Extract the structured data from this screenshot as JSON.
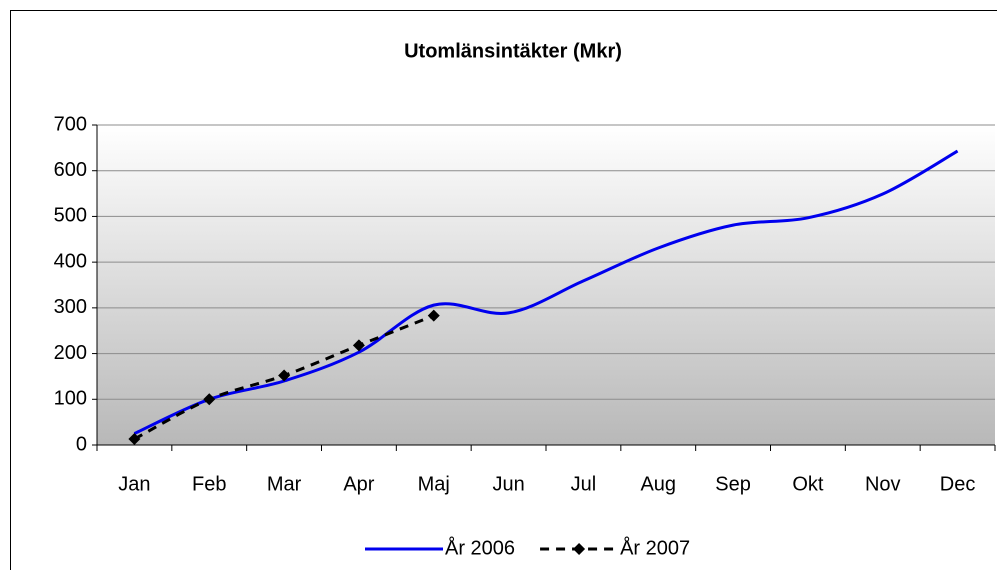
{
  "chart_data": {
    "type": "line",
    "title": "Utomlänsintäkter (Mkr)",
    "categories": [
      "Jan",
      "Feb",
      "Mar",
      "Apr",
      "Maj",
      "Jun",
      "Jul",
      "Aug",
      "Sep",
      "Okt",
      "Nov",
      "Dec"
    ],
    "series": [
      {
        "name": "År 2006",
        "color": "#0000ee",
        "values": [
          25,
          100,
          140,
          203,
          306,
          289,
          359,
          431,
          481,
          497,
          549,
          643
        ]
      },
      {
        "name": "År 2007",
        "color": "#000000",
        "values": [
          13,
          100,
          152,
          218,
          283,
          null,
          null,
          null,
          null,
          null,
          null,
          null
        ]
      }
    ],
    "ylim": [
      0,
      700
    ],
    "yticks": [
      0,
      100,
      200,
      300,
      400,
      500,
      600,
      700
    ],
    "grid": true,
    "legend": "bottom"
  }
}
